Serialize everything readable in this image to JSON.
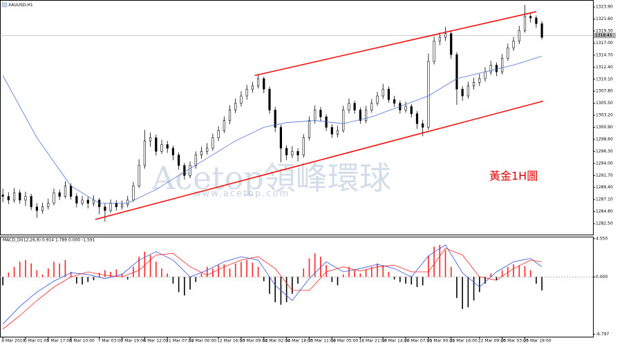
{
  "chart_data": {
    "type": "candlestick",
    "title": "XAUUSD,H1",
    "annotation": "黃金1H圖",
    "watermark": {
      "brand": "Acetop領峰環球",
      "url": "www.acetop.com"
    },
    "xlim": [
      -0.5,
      104
    ],
    "ylim": [
      1280.4,
      1325.1
    ],
    "yticks": [
      {
        "value": 1323.9,
        "label": "1323.90"
      },
      {
        "value": 1321.6,
        "label": "1321.60"
      },
      {
        "value": 1319.3,
        "label": "1319.30"
      },
      {
        "value": 1317,
        "label": "1317.00"
      },
      {
        "value": 1314.7,
        "label": "1314.70"
      },
      {
        "value": 1312.4,
        "label": "1312.40"
      },
      {
        "value": 1310.1,
        "label": "1310.10"
      },
      {
        "value": 1307.8,
        "label": "1307.80"
      },
      {
        "value": 1305.5,
        "label": "1305.50"
      },
      {
        "value": 1303.2,
        "label": "1303.20"
      },
      {
        "value": 1300.9,
        "label": "1300.90"
      },
      {
        "value": 1298.6,
        "label": "1298.60"
      },
      {
        "value": 1296.3,
        "label": "1296.30"
      },
      {
        "value": 1294,
        "label": "1294.00"
      },
      {
        "value": 1291.7,
        "label": "1291.70"
      },
      {
        "value": 1289.4,
        "label": "1289.40"
      },
      {
        "value": 1287.1,
        "label": "1287.10"
      },
      {
        "value": 1284.8,
        "label": "1284.80"
      },
      {
        "value": 1282.5,
        "label": "1282.50"
      }
    ],
    "xticks": [
      {
        "value": 0,
        "label": "4 Mar 2019"
      },
      {
        "value": 4,
        "label": "5 Mar 01:00"
      },
      {
        "value": 8,
        "label": "5 Mar 17:00"
      },
      {
        "value": 12,
        "label": "6 Mar 10:00"
      },
      {
        "value": 17,
        "label": "7 Mar 03:00"
      },
      {
        "value": 21,
        "label": "7 Mar 19:00"
      },
      {
        "value": 25,
        "label": "8 Mar 12:00"
      },
      {
        "value": 29,
        "label": "11 Mar 07:00"
      },
      {
        "value": 33,
        "label": "12 Mar 00:00"
      },
      {
        "value": 38,
        "label": "12 Mar 16:00"
      },
      {
        "value": 42,
        "label": "13 Mar 09:00"
      },
      {
        "value": 46,
        "label": "14 Mar 02:00"
      },
      {
        "value": 50,
        "label": "14 Mar 18:00"
      },
      {
        "value": 54,
        "label": "15 Mar 11:00"
      },
      {
        "value": 58,
        "label": "18 Mar 05:00"
      },
      {
        "value": 63,
        "label": "18 Mar 21:00"
      },
      {
        "value": 67,
        "label": "19 Mar 14:00"
      },
      {
        "value": 71,
        "label": "20 Mar 07:00"
      },
      {
        "value": 75,
        "label": "21 Mar 00:00"
      },
      {
        "value": 79,
        "label": "21 Mar 16:00"
      },
      {
        "value": 84,
        "label": "22 Mar 09:00"
      },
      {
        "value": 88,
        "label": "25 Mar 03:00"
      },
      {
        "value": 92,
        "label": "25 Mar 19:00"
      }
    ],
    "up_color": "#ffffff",
    "down_color": "#000000",
    "open": [
      1288.0,
      1287.7,
      1287.0,
      1288.4,
      1287.0,
      1287.7,
      1285.7,
      1285.0,
      1285.7,
      1286.4,
      1288.4,
      1287.7,
      1289.7,
      1287.7,
      1286.4,
      1287.0,
      1286.4,
      1287.0,
      1285.7,
      1285.0,
      1286.4,
      1285.7,
      1286.1,
      1287.0,
      1289.7,
      1293.6,
      1298.3,
      1298.9,
      1296.3,
      1297.6,
      1296.9,
      1295.6,
      1293.6,
      1291.7,
      1293.6,
      1295.6,
      1296.3,
      1296.9,
      1298.9,
      1300.3,
      1302.2,
      1304.2,
      1305.5,
      1306.9,
      1308.2,
      1308.8,
      1310.2,
      1308.2,
      1304.2,
      1300.9,
      1296.9,
      1295.6,
      1296.3,
      1295.6,
      1298.9,
      1302.2,
      1304.2,
      1302.9,
      1300.9,
      1299.6,
      1300.3,
      1304.2,
      1305.5,
      1304.2,
      1302.2,
      1304.2,
      1305.5,
      1306.9,
      1308.2,
      1306.2,
      1305.5,
      1304.2,
      1304.9,
      1303.5,
      1301.6,
      1300.9,
      1313.5,
      1317.4,
      1318.1,
      1318.8,
      1314.8,
      1308.2,
      1306.9,
      1308.8,
      1309.5,
      1310.2,
      1311.5,
      1312.8,
      1311.5,
      1314.1,
      1316.1,
      1317.4,
      1319.4,
      1322.1,
      1321.8,
      1320.7
    ],
    "high": [
      1289.2,
      1288.5,
      1289.3,
      1289.0,
      1288.6,
      1288.2,
      1286.4,
      1286.5,
      1287.3,
      1289.2,
      1289.0,
      1290.6,
      1290.2,
      1288.3,
      1287.8,
      1287.6,
      1287.9,
      1287.4,
      1286.3,
      1287.1,
      1287.0,
      1286.9,
      1287.8,
      1290.5,
      1294.8,
      1300.4,
      1299.9,
      1299.5,
      1298.5,
      1298.3,
      1297.4,
      1296.1,
      1294.1,
      1294.4,
      1296.3,
      1297.2,
      1297.9,
      1299.7,
      1301.1,
      1303.0,
      1305.1,
      1306.4,
      1307.8,
      1309.0,
      1309.6,
      1311.0,
      1310.6,
      1308.7,
      1304.8,
      1301.4,
      1297.5,
      1297.3,
      1296.9,
      1299.6,
      1303.0,
      1305.1,
      1304.8,
      1303.4,
      1301.5,
      1301.2,
      1305.0,
      1306.4,
      1306.0,
      1304.7,
      1305.0,
      1306.3,
      1307.7,
      1309.2,
      1308.7,
      1306.9,
      1306.0,
      1305.8,
      1305.4,
      1304.0,
      1302.3,
      1315.0,
      1318.3,
      1319.0,
      1320.1,
      1319.3,
      1315.3,
      1308.8,
      1309.6,
      1310.4,
      1311.1,
      1312.4,
      1313.6,
      1313.3,
      1314.9,
      1316.9,
      1318.2,
      1320.3,
      1324.3,
      1322.9,
      1322.3,
      1321.2
    ],
    "low": [
      1286.6,
      1286.2,
      1286.5,
      1286.3,
      1285.9,
      1285.1,
      1283.6,
      1284.4,
      1285.2,
      1286.0,
      1287.0,
      1287.3,
      1287.1,
      1285.6,
      1285.9,
      1285.4,
      1285.8,
      1284.3,
      1282.9,
      1284.6,
      1285.0,
      1285.2,
      1285.6,
      1286.7,
      1289.3,
      1293.0,
      1297.2,
      1295.5,
      1295.8,
      1296.0,
      1294.6,
      1292.8,
      1290.9,
      1291.2,
      1293.0,
      1294.9,
      1295.7,
      1296.4,
      1298.3,
      1299.8,
      1301.5,
      1303.6,
      1304.9,
      1306.2,
      1307.5,
      1308.3,
      1307.4,
      1303.5,
      1300.0,
      1294.2,
      1294.6,
      1295.0,
      1294.4,
      1295.1,
      1298.4,
      1301.6,
      1302.1,
      1300.2,
      1298.9,
      1299.0,
      1299.9,
      1303.6,
      1303.5,
      1301.6,
      1301.7,
      1303.7,
      1305.0,
      1306.3,
      1305.6,
      1304.8,
      1303.5,
      1303.7,
      1302.8,
      1300.6,
      1299.2,
      1300.4,
      1312.9,
      1316.6,
      1317.4,
      1314.0,
      1305.2,
      1306.0,
      1306.4,
      1308.1,
      1308.8,
      1309.6,
      1310.9,
      1310.7,
      1311.0,
      1313.6,
      1315.5,
      1316.8,
      1319.0,
      1320.9,
      1319.9,
      1317.7
    ],
    "close": [
      1287.7,
      1287.0,
      1288.4,
      1287.0,
      1287.7,
      1285.7,
      1285.0,
      1285.7,
      1286.4,
      1288.4,
      1287.7,
      1289.7,
      1287.7,
      1286.4,
      1287.0,
      1286.4,
      1287.0,
      1285.7,
      1285.0,
      1286.4,
      1285.7,
      1286.1,
      1287.0,
      1289.7,
      1293.6,
      1298.3,
      1298.9,
      1296.3,
      1297.6,
      1296.9,
      1295.6,
      1293.6,
      1291.7,
      1293.6,
      1295.6,
      1296.3,
      1296.9,
      1298.9,
      1300.3,
      1302.2,
      1304.2,
      1305.5,
      1306.9,
      1308.2,
      1308.8,
      1310.2,
      1308.2,
      1304.2,
      1300.9,
      1296.9,
      1295.6,
      1296.3,
      1295.6,
      1298.9,
      1302.2,
      1304.2,
      1302.9,
      1300.9,
      1299.6,
      1300.3,
      1304.2,
      1305.5,
      1304.2,
      1302.2,
      1304.2,
      1305.5,
      1306.9,
      1308.2,
      1306.2,
      1305.5,
      1304.2,
      1304.9,
      1303.5,
      1301.6,
      1300.9,
      1313.5,
      1317.4,
      1318.1,
      1318.8,
      1314.8,
      1308.2,
      1306.9,
      1308.8,
      1309.5,
      1310.2,
      1311.5,
      1312.8,
      1311.5,
      1314.1,
      1316.1,
      1317.4,
      1319.4,
      1322.1,
      1321.8,
      1320.7,
      1318.1
    ],
    "ma": {
      "color": "#4a72d8",
      "x": [
        0,
        6,
        12,
        17,
        22,
        27,
        31,
        36,
        41,
        46,
        50,
        55,
        60,
        65,
        70,
        75,
        80,
        85,
        90,
        95
      ],
      "values": [
        1310.8,
        1298.9,
        1289.7,
        1286.4,
        1286.4,
        1289.0,
        1291.7,
        1295.0,
        1298.3,
        1300.9,
        1301.8,
        1302.2,
        1301.6,
        1302.9,
        1304.9,
        1306.9,
        1310.2,
        1311.5,
        1312.8,
        1314.5
      ]
    },
    "channel": {
      "color": "#ff0000",
      "lines": [
        {
          "x": [
            44.4,
            94
          ],
          "y": [
            1310.8,
            1323.0
          ]
        },
        {
          "x": [
            16.3,
            95.2
          ],
          "y": [
            1283.3,
            1305.9
          ]
        }
      ]
    },
    "bid": 1318.45,
    "bid_color": "#b0b0b0",
    "macd": {
      "label": "MACD_DI(12,26,9) 0.914 1.789 0.000 -1.591",
      "ylim": [
        -7.1,
        4.7
      ],
      "yticks": [
        {
          "value": 4.55,
          "label": "4.550"
        },
        {
          "value": 0,
          "label": "0.000"
        },
        {
          "value": -6.797,
          "label": "-6.797"
        }
      ],
      "zero_color": "#b0b0b0",
      "histogram": {
        "pos_color": "#ff2020",
        "neg_color": "#000000",
        "values": [
          -1.0,
          0.5,
          1.2,
          1.8,
          2.0,
          1.6,
          0.8,
          0.3,
          1.0,
          1.8,
          1.6,
          2.0,
          0.6,
          -0.8,
          -0.9,
          -0.6,
          -0.4,
          0.5,
          0.8,
          0.6,
          0.9,
          0.4,
          -0.3,
          1.2,
          2.4,
          3.0,
          2.6,
          1.8,
          1.0,
          0.4,
          -0.8,
          -1.8,
          -2.2,
          -1.5,
          -0.6,
          0.4,
          1.2,
          1.0,
          1.4,
          1.5,
          1.0,
          1.6,
          1.8,
          2.0,
          1.7,
          1.2,
          -0.5,
          -2.0,
          -3.0,
          -3.3,
          -3.0,
          -2.0,
          -0.8,
          1.0,
          2.2,
          2.8,
          2.4,
          1.4,
          -0.6,
          -1.0,
          0.3,
          1.2,
          0.8,
          0.4,
          0.9,
          1.2,
          1.6,
          1.4,
          0.6,
          -0.3,
          -0.6,
          -0.8,
          -0.9,
          -1.2,
          -1.0,
          2.5,
          3.6,
          3.8,
          3.2,
          1.2,
          -2.5,
          -3.8,
          -3.6,
          -2.8,
          -1.8,
          -0.8,
          0.4,
          -0.4,
          0.8,
          1.2,
          1.5,
          1.4,
          1.3,
          0.8,
          -0.8,
          -1.6
        ]
      },
      "main": {
        "color": "#3050e0",
        "x": [
          0,
          3,
          6,
          9,
          12,
          15,
          18,
          21,
          24,
          27,
          30,
          33,
          36,
          39,
          42,
          45,
          48,
          51,
          54,
          57,
          60,
          63,
          66,
          69,
          72,
          75,
          78,
          81,
          84,
          87,
          90,
          93,
          95
        ],
        "values": [
          -5.6,
          -3.5,
          -1.8,
          -0.5,
          0.5,
          0.3,
          -0.2,
          0.3,
          2.0,
          3.0,
          2.0,
          0.0,
          0.8,
          1.8,
          2.4,
          2.0,
          -1.0,
          -2.8,
          -0.2,
          1.8,
          0.6,
          1.0,
          1.5,
          1.0,
          0.0,
          2.5,
          3.8,
          0.5,
          -1.2,
          0.6,
          1.8,
          2.2,
          1.2
        ]
      },
      "signal": {
        "color": "#ff2020",
        "x": [
          0,
          3,
          6,
          9,
          12,
          15,
          18,
          21,
          24,
          27,
          30,
          33,
          36,
          39,
          42,
          45,
          48,
          51,
          54,
          57,
          60,
          63,
          66,
          69,
          72,
          75,
          78,
          81,
          84,
          87,
          90,
          93,
          95
        ],
        "values": [
          -6.2,
          -4.6,
          -2.8,
          -1.2,
          0.0,
          0.6,
          0.2,
          0.0,
          0.8,
          2.6,
          2.8,
          1.2,
          0.2,
          1.2,
          2.0,
          2.4,
          1.0,
          -1.6,
          -1.6,
          0.6,
          1.2,
          0.7,
          1.2,
          1.4,
          0.6,
          0.6,
          3.4,
          2.6,
          0.0,
          -0.4,
          1.0,
          2.0,
          1.8
        ]
      }
    }
  }
}
